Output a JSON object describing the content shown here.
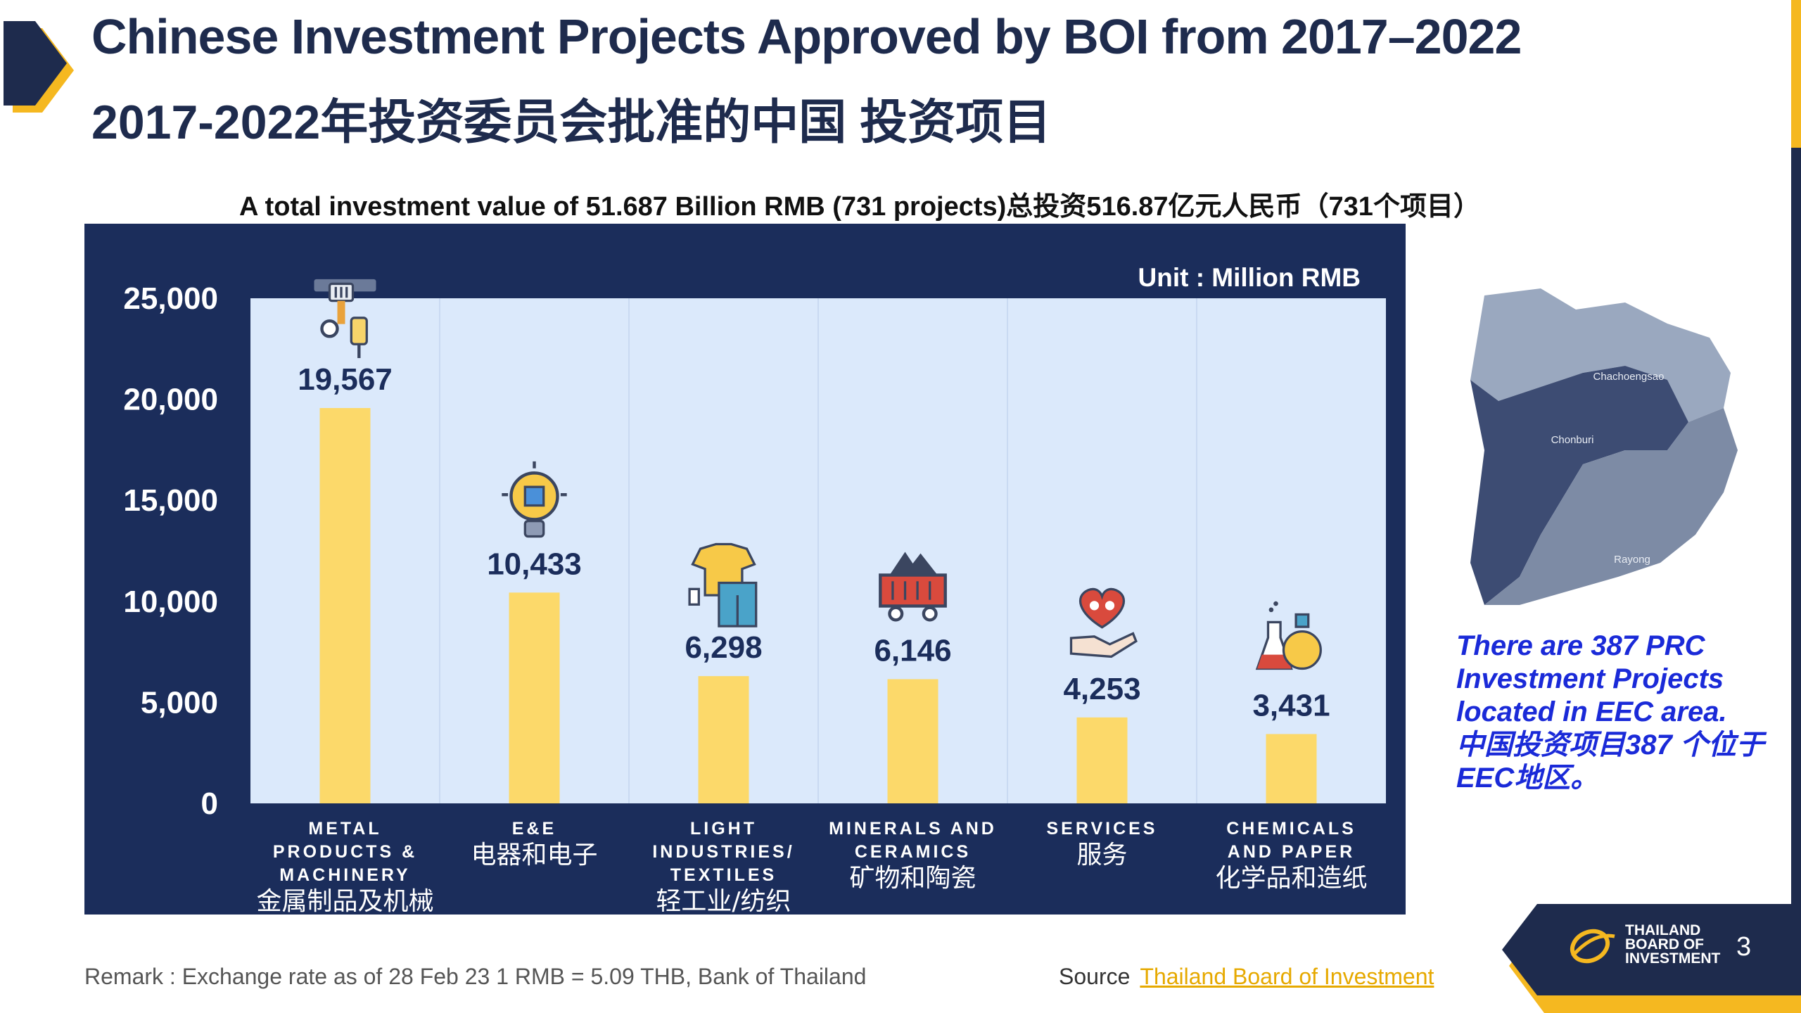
{
  "header": {
    "title_en": "Chinese Investment Projects Approved by BOI from 2017–2022",
    "title_zh": "2017-2022年投资委员会批准的中国 投资项目"
  },
  "summary": "A total investment value of  51.687 Billion RMB (731 projects)总投资516.87亿元人民币（731个项目）",
  "chart_data": {
    "type": "bar",
    "unit_label": "Unit : Million RMB",
    "categories": [
      {
        "en": "METAL PRODUCTS & MACHINERY",
        "zh": "金属制品及机械",
        "icon": "robotic-arm-icon"
      },
      {
        "en": "E&E",
        "zh": "电器和电子",
        "icon": "lightbulb-chip-icon"
      },
      {
        "en": "LIGHT INDUSTRIES/ TEXTILES",
        "zh": "轻工业/纺织",
        "icon": "clothing-icon"
      },
      {
        "en": "MINERALS AND CERAMICS",
        "zh": "矿物和陶瓷",
        "icon": "mine-cart-icon"
      },
      {
        "en": "SERVICES",
        "zh": "服务",
        "icon": "heart-hand-icon"
      },
      {
        "en": "CHEMICALS AND PAPER",
        "zh": "化学品和造纸",
        "icon": "flasks-icon"
      }
    ],
    "values": [
      19567,
      10433,
      6298,
      6146,
      4253,
      3431
    ],
    "value_labels": [
      "19,567",
      "10,433",
      "6,298",
      "6,146",
      "4,253",
      "3,431"
    ],
    "yticks": [
      "0",
      "5,000",
      "10,000",
      "15,000",
      "20,000",
      "25,000"
    ],
    "ylim": [
      0,
      25000
    ],
    "colors": {
      "bar": "#fcd96a",
      "plot_bg": "#dbe9fb",
      "panel_bg": "#1b2d5b"
    }
  },
  "map": {
    "regions": [
      "Chachoengsao",
      "Chonburi",
      "Rayong"
    ],
    "colors": {
      "chachoengsao": "#9aa8bf",
      "chonburi": "#3d4c73",
      "rayong": "#7d8ba5"
    }
  },
  "eec_note": {
    "line1": "There are 387 PRC",
    "line2": "Investment Projects",
    "line3": "located in EEC area.",
    "line4": "中国投资项目387 个位于",
    "line5": "EEC地区。"
  },
  "footer": {
    "remark": "Remark : Exchange rate  as of 28 Feb 23 1 RMB  = 5.09 THB, Bank of Thailand",
    "source_label": "Source",
    "source_link": "Thailand Board of Investment",
    "logo_lines": [
      "THAILAND",
      "BOARD OF",
      "INVESTMENT"
    ],
    "page_number": "3"
  },
  "theme": {
    "navy": "#1e2b4d",
    "gold": "#f5b820",
    "link_gold": "#e6a900"
  }
}
